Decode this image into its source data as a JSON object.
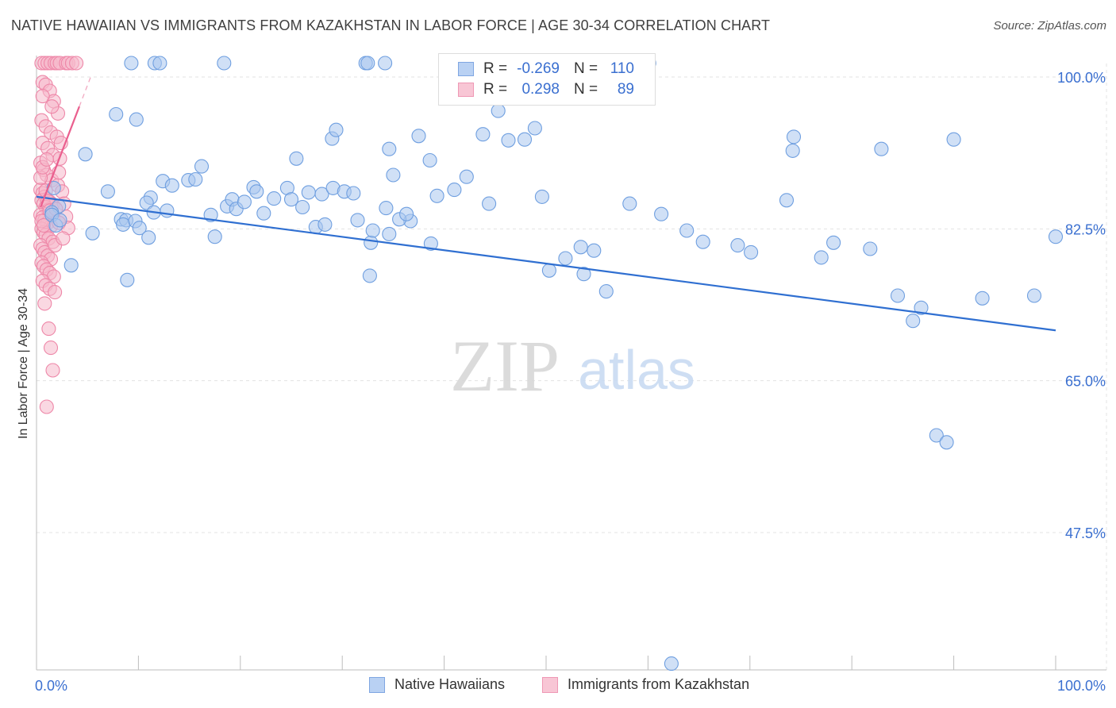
{
  "header": {
    "title": "NATIVE HAWAIIAN VS IMMIGRANTS FROM KAZAKHSTAN IN LABOR FORCE | AGE 30-34 CORRELATION CHART",
    "source": "Source: ZipAtlas.com"
  },
  "watermark": {
    "zip": "ZIP",
    "atlas": "atlas"
  },
  "legend": {
    "r_label": "R =",
    "n_label": "N =",
    "series": [
      {
        "r": "-0.269",
        "n": "110"
      },
      {
        "r": "0.298",
        "n": "89"
      }
    ]
  },
  "chart_data": {
    "type": "scatter",
    "title": "NATIVE HAWAIIAN VS IMMIGRANTS FROM KAZAKHSTAN IN LABOR FORCE | AGE 30-34 CORRELATION CHART",
    "xlabel": "",
    "ylabel": "In Labor Force | Age 30-34",
    "xlim": [
      0,
      100
    ],
    "ylim": [
      31,
      102
    ],
    "x_tick_labels": [
      "0.0%",
      "100.0%"
    ],
    "y_tick_labels": [
      "100.0%",
      "82.5%",
      "65.0%",
      "47.5%"
    ],
    "y_ticks": [
      100,
      82.5,
      65,
      47.5
    ],
    "grid": true,
    "legend_position": "bottom",
    "colors": {
      "blue_fill": "#a9c6ee",
      "blue_stroke": "#6f9fe0",
      "blue_line": "#2f6fd1",
      "pink_fill": "#f6b8cb",
      "pink_stroke": "#ee87a8",
      "pink_line": "#ea5f8e",
      "tick_label": "#3a6fd0"
    },
    "series": [
      {
        "name": "Native Hawaiians",
        "r": -0.269,
        "n": 110,
        "trend": {
          "x": [
            0,
            100
          ],
          "y": [
            86.2,
            70.8
          ]
        },
        "points": [
          [
            9.3,
            101.6
          ],
          [
            11.6,
            101.6
          ],
          [
            12.1,
            101.6
          ],
          [
            18.4,
            101.6
          ],
          [
            32.3,
            101.6
          ],
          [
            32.5,
            101.6
          ],
          [
            34.2,
            101.6
          ],
          [
            60.1,
            101.6
          ],
          [
            1.7,
            87.2
          ],
          [
            2.2,
            85.1
          ],
          [
            1.5,
            84.4
          ],
          [
            1.5,
            84.1
          ],
          [
            1.9,
            82.9
          ],
          [
            2.3,
            83.5
          ],
          [
            3.4,
            78.3
          ],
          [
            4.8,
            91.1
          ],
          [
            7.0,
            86.8
          ],
          [
            7.8,
            95.7
          ],
          [
            8.3,
            83.6
          ],
          [
            5.5,
            82.0
          ],
          [
            8.8,
            83.5
          ],
          [
            8.9,
            76.6
          ],
          [
            8.5,
            83.0
          ],
          [
            9.8,
            95.1
          ],
          [
            9.7,
            83.4
          ],
          [
            10.1,
            82.6
          ],
          [
            11.0,
            81.5
          ],
          [
            11.2,
            86.1
          ],
          [
            10.8,
            85.5
          ],
          [
            11.5,
            84.4
          ],
          [
            12.8,
            84.6
          ],
          [
            12.4,
            88.0
          ],
          [
            13.3,
            87.5
          ],
          [
            14.9,
            88.1
          ],
          [
            15.6,
            88.2
          ],
          [
            16.2,
            89.7
          ],
          [
            17.1,
            84.1
          ],
          [
            17.5,
            81.6
          ],
          [
            18.7,
            85.1
          ],
          [
            19.2,
            85.9
          ],
          [
            19.6,
            84.8
          ],
          [
            20.4,
            85.6
          ],
          [
            21.3,
            87.3
          ],
          [
            21.6,
            86.8
          ],
          [
            22.3,
            84.3
          ],
          [
            23.3,
            86.0
          ],
          [
            24.6,
            87.2
          ],
          [
            25.5,
            90.6
          ],
          [
            25.0,
            85.9
          ],
          [
            26.1,
            85.0
          ],
          [
            26.7,
            86.7
          ],
          [
            27.4,
            82.7
          ],
          [
            28.0,
            86.5
          ],
          [
            28.3,
            83.0
          ],
          [
            29.1,
            87.2
          ],
          [
            29.0,
            92.9
          ],
          [
            29.4,
            93.9
          ],
          [
            30.2,
            86.8
          ],
          [
            31.1,
            86.6
          ],
          [
            31.5,
            83.5
          ],
          [
            32.7,
            77.1
          ],
          [
            32.8,
            80.9
          ],
          [
            33.0,
            82.3
          ],
          [
            34.3,
            84.9
          ],
          [
            34.6,
            91.7
          ],
          [
            35.0,
            88.7
          ],
          [
            36.7,
            83.4
          ],
          [
            37.5,
            93.2
          ],
          [
            38.6,
            90.4
          ],
          [
            39.3,
            86.3
          ],
          [
            38.7,
            80.8
          ],
          [
            34.6,
            81.9
          ],
          [
            35.6,
            83.6
          ],
          [
            36.3,
            84.2
          ],
          [
            41.0,
            87.0
          ],
          [
            42.2,
            88.5
          ],
          [
            43.8,
            93.4
          ],
          [
            44.4,
            85.4
          ],
          [
            45.3,
            96.1
          ],
          [
            46.3,
            92.7
          ],
          [
            47.9,
            92.8
          ],
          [
            48.9,
            94.1
          ],
          [
            49.6,
            86.2
          ],
          [
            50.3,
            77.7
          ],
          [
            51.9,
            79.1
          ],
          [
            53.4,
            80.4
          ],
          [
            53.7,
            77.3
          ],
          [
            54.7,
            80.0
          ],
          [
            55.9,
            75.3
          ],
          [
            58.2,
            85.4
          ],
          [
            61.3,
            84.2
          ],
          [
            63.8,
            82.3
          ],
          [
            65.4,
            81.0
          ],
          [
            68.8,
            80.6
          ],
          [
            70.1,
            79.8
          ],
          [
            73.6,
            85.8
          ],
          [
            74.3,
            93.1
          ],
          [
            74.2,
            91.5
          ],
          [
            77.0,
            79.2
          ],
          [
            78.2,
            80.9
          ],
          [
            81.8,
            80.2
          ],
          [
            82.9,
            91.7
          ],
          [
            84.5,
            74.8
          ],
          [
            86.8,
            73.4
          ],
          [
            86.0,
            71.9
          ],
          [
            88.3,
            58.7
          ],
          [
            89.3,
            57.9
          ],
          [
            90.0,
            92.8
          ],
          [
            92.8,
            74.5
          ],
          [
            97.9,
            74.8
          ],
          [
            100.0,
            81.6
          ],
          [
            62.3,
            32.4
          ]
        ]
      },
      {
        "name": "Immigrants from Kazakhstan",
        "r": 0.298,
        "n": 89,
        "trend": {
          "x": [
            0.4,
            4.2
          ],
          "y": [
            85.0,
            96.6
          ]
        },
        "points": [
          [
            0.5,
            101.6
          ],
          [
            0.8,
            101.6
          ],
          [
            1.1,
            101.6
          ],
          [
            1.4,
            101.6
          ],
          [
            1.8,
            101.6
          ],
          [
            2.0,
            101.6
          ],
          [
            2.3,
            101.6
          ],
          [
            2.9,
            101.6
          ],
          [
            3.1,
            101.6
          ],
          [
            3.5,
            101.6
          ],
          [
            3.9,
            101.6
          ],
          [
            0.6,
            99.4
          ],
          [
            0.9,
            99.1
          ],
          [
            1.3,
            98.4
          ],
          [
            1.7,
            97.2
          ],
          [
            2.1,
            95.8
          ],
          [
            0.5,
            95.0
          ],
          [
            0.9,
            94.3
          ],
          [
            1.4,
            93.6
          ],
          [
            2.0,
            93.1
          ],
          [
            0.6,
            92.4
          ],
          [
            1.1,
            91.8
          ],
          [
            1.6,
            91.0
          ],
          [
            2.3,
            90.6
          ],
          [
            0.4,
            90.1
          ],
          [
            0.7,
            89.3
          ],
          [
            1.0,
            88.7
          ],
          [
            1.5,
            88.1
          ],
          [
            2.1,
            87.5
          ],
          [
            0.4,
            87.0
          ],
          [
            0.6,
            86.6
          ],
          [
            0.8,
            86.2
          ],
          [
            1.0,
            85.9
          ],
          [
            1.3,
            85.6
          ],
          [
            1.6,
            85.3
          ],
          [
            0.5,
            85.8
          ],
          [
            0.7,
            85.4
          ],
          [
            0.9,
            85.0
          ],
          [
            1.2,
            84.7
          ],
          [
            1.5,
            84.4
          ],
          [
            0.4,
            84.1
          ],
          [
            0.6,
            83.8
          ],
          [
            0.8,
            83.5
          ],
          [
            1.1,
            83.2
          ],
          [
            1.4,
            82.8
          ],
          [
            0.5,
            82.5
          ],
          [
            0.7,
            82.1
          ],
          [
            0.9,
            81.8
          ],
          [
            1.2,
            81.4
          ],
          [
            1.6,
            81.0
          ],
          [
            0.4,
            80.6
          ],
          [
            0.6,
            80.2
          ],
          [
            0.8,
            79.8
          ],
          [
            1.1,
            79.4
          ],
          [
            1.4,
            79.0
          ],
          [
            0.5,
            78.6
          ],
          [
            0.7,
            78.2
          ],
          [
            1.0,
            77.8
          ],
          [
            1.3,
            77.4
          ],
          [
            1.7,
            77.0
          ],
          [
            0.6,
            76.5
          ],
          [
            0.9,
            76.0
          ],
          [
            1.3,
            75.6
          ],
          [
            1.8,
            75.2
          ],
          [
            2.5,
            86.8
          ],
          [
            2.7,
            85.4
          ],
          [
            2.9,
            83.9
          ],
          [
            3.1,
            82.6
          ],
          [
            0.8,
            73.9
          ],
          [
            1.2,
            71.0
          ],
          [
            1.4,
            68.8
          ],
          [
            1.6,
            66.2
          ],
          [
            1.0,
            62.0
          ],
          [
            2.2,
            89.0
          ],
          [
            2.4,
            92.4
          ],
          [
            0.6,
            97.8
          ],
          [
            1.5,
            96.6
          ],
          [
            0.9,
            86.9
          ],
          [
            1.1,
            85.7
          ],
          [
            1.3,
            84.6
          ],
          [
            0.5,
            83.4
          ],
          [
            0.7,
            82.9
          ],
          [
            1.9,
            84.8
          ],
          [
            2.2,
            83.2
          ],
          [
            1.8,
            80.6
          ],
          [
            2.6,
            81.4
          ],
          [
            0.4,
            88.4
          ],
          [
            0.6,
            89.6
          ],
          [
            1.0,
            90.5
          ]
        ]
      }
    ]
  }
}
